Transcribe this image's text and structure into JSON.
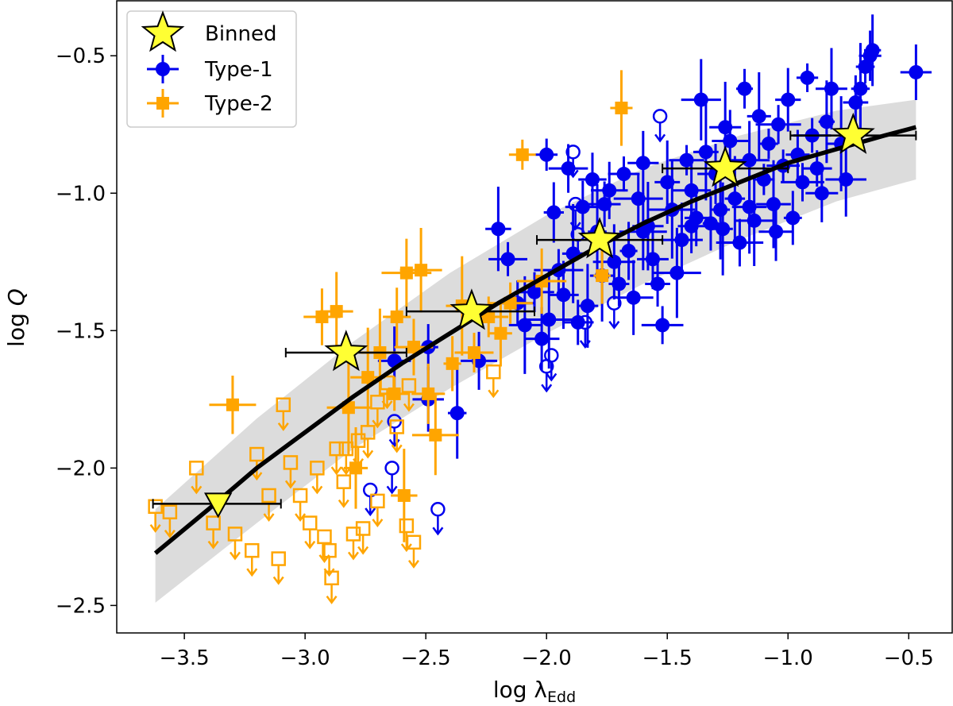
{
  "chart_data": {
    "type": "scatter",
    "xlabel_main": "log λ",
    "xlabel_sub": "Edd",
    "ylabel_main": "log ",
    "ylabel_italic": "Q",
    "xlim": [
      -3.78,
      -0.32
    ],
    "ylim": [
      -2.6,
      -0.3
    ],
    "xticks": [
      -3.5,
      -3.0,
      -2.5,
      -2.0,
      -1.5,
      -1.0,
      -0.5
    ],
    "xtick_labels": [
      "−3.5",
      "−3.0",
      "−2.5",
      "−2.0",
      "−1.5",
      "−1.0",
      "−0.5"
    ],
    "yticks": [
      -2.5,
      -2.0,
      -1.5,
      -1.0,
      -0.5
    ],
    "ytick_labels": [
      "−2.5",
      "−2.0",
      "−1.5",
      "−1.0",
      "−0.5"
    ],
    "legend": {
      "placement": "upper-left",
      "entries": [
        {
          "label": "Binned",
          "marker": "star",
          "color": "#ffff33"
        },
        {
          "label": "Type-1",
          "marker": "circle",
          "color": "#0000ee"
        },
        {
          "label": "Type-2",
          "marker": "square",
          "color": "#ffa500"
        }
      ]
    },
    "colors": {
      "type1": "#0000ee",
      "type2": "#ffa500",
      "binned": "#ffff33",
      "fit": "#000000",
      "band": "#dcdcdc"
    },
    "fit_curve": {
      "x": [
        -3.62,
        -3.4,
        -3.2,
        -3.0,
        -2.8,
        -2.6,
        -2.4,
        -2.2,
        -2.0,
        -1.8,
        -1.6,
        -1.4,
        -1.2,
        -1.0,
        -0.8,
        -0.6,
        -0.47
      ],
      "y": [
        -2.31,
        -2.15,
        -2.0,
        -1.87,
        -1.74,
        -1.62,
        -1.51,
        -1.4,
        -1.3,
        -1.2,
        -1.11,
        -1.03,
        -0.96,
        -0.89,
        -0.84,
        -0.79,
        -0.76
      ]
    },
    "band": {
      "x": [
        -3.62,
        -3.2,
        -2.8,
        -2.4,
        -2.0,
        -1.6,
        -1.2,
        -0.8,
        -0.47
      ],
      "upper": [
        -2.15,
        -1.82,
        -1.54,
        -1.29,
        -1.08,
        -0.91,
        -0.79,
        -0.7,
        -0.66
      ],
      "lower": [
        -2.49,
        -2.2,
        -1.93,
        -1.71,
        -1.51,
        -1.33,
        -1.17,
        -1.03,
        -0.95
      ]
    },
    "binned": [
      {
        "x": -3.36,
        "y": -2.13,
        "xerr": [
          0.27,
          0.26
        ],
        "marker": "triangle"
      },
      {
        "x": -2.83,
        "y": -1.58,
        "xerr": [
          0.25,
          0.25
        ],
        "marker": "star"
      },
      {
        "x": -2.31,
        "y": -1.43,
        "xerr": [
          0.27,
          0.26
        ],
        "marker": "star"
      },
      {
        "x": -1.78,
        "y": -1.17,
        "xerr": [
          0.26,
          0.26
        ],
        "marker": "star"
      },
      {
        "x": -1.26,
        "y": -0.91,
        "xerr": [
          0.26,
          0.26
        ],
        "marker": "star"
      },
      {
        "x": -0.73,
        "y": -0.79,
        "xerr": [
          0.26,
          0.26
        ],
        "marker": "star"
      }
    ],
    "series": [
      {
        "name": "Type-1",
        "detections": [
          [
            -2.63,
            -1.61
          ],
          [
            -2.49,
            -1.56
          ],
          [
            -2.49,
            -1.75
          ],
          [
            -2.37,
            -1.8
          ],
          [
            -2.28,
            -1.61
          ],
          [
            -2.2,
            -1.13
          ],
          [
            -2.16,
            -1.24
          ],
          [
            -2.12,
            -1.4
          ],
          [
            -2.05,
            -1.36
          ],
          [
            -2.02,
            -1.53
          ],
          [
            -2.0,
            -0.86
          ],
          [
            -1.99,
            -1.46
          ],
          [
            -1.97,
            -1.07
          ],
          [
            -1.95,
            -1.28
          ],
          [
            -1.93,
            -1.37
          ],
          [
            -1.91,
            -0.91
          ],
          [
            -1.89,
            -1.22
          ],
          [
            -1.87,
            -1.47
          ],
          [
            -1.85,
            -1.05
          ],
          [
            -1.83,
            -1.41
          ],
          [
            -1.81,
            -0.95
          ],
          [
            -1.79,
            -1.14
          ],
          [
            -1.77,
            -1.3
          ],
          [
            -1.76,
            -1.04
          ],
          [
            -1.74,
            -0.99
          ],
          [
            -1.72,
            -1.25
          ],
          [
            -1.7,
            -1.33
          ],
          [
            -1.68,
            -0.93
          ],
          [
            -1.66,
            -1.21
          ],
          [
            -1.64,
            -1.38
          ],
          [
            -1.62,
            -1.02
          ],
          [
            -1.6,
            -0.89
          ],
          [
            -1.58,
            -1.12
          ],
          [
            -1.56,
            -1.24
          ],
          [
            -1.54,
            -1.33
          ],
          [
            -1.52,
            -1.48
          ],
          [
            -1.5,
            -0.96
          ],
          [
            -1.48,
            -1.06
          ],
          [
            -1.46,
            -1.29
          ],
          [
            -1.44,
            -1.17
          ],
          [
            -1.42,
            -0.88
          ],
          [
            -1.4,
            -1.12
          ],
          [
            -1.38,
            -1.09
          ],
          [
            -1.36,
            -0.66
          ],
          [
            -1.34,
            -0.85
          ],
          [
            -1.32,
            -1.11
          ],
          [
            -1.3,
            -0.93
          ],
          [
            -1.28,
            -1.06
          ],
          [
            -1.26,
            -0.76
          ],
          [
            -1.24,
            -0.81
          ],
          [
            -1.22,
            -1.02
          ],
          [
            -1.2,
            -1.18
          ],
          [
            -1.18,
            -0.62
          ],
          [
            -1.16,
            -0.88
          ],
          [
            -1.14,
            -1.1
          ],
          [
            -1.12,
            -0.72
          ],
          [
            -1.1,
            -0.95
          ],
          [
            -1.08,
            -0.82
          ],
          [
            -1.06,
            -1.04
          ],
          [
            -1.04,
            -0.75
          ],
          [
            -1.02,
            -0.9
          ],
          [
            -1.0,
            -0.66
          ],
          [
            -0.98,
            -1.09
          ],
          [
            -0.96,
            -0.86
          ],
          [
            -0.94,
            -0.96
          ],
          [
            -0.92,
            -0.58
          ],
          [
            -0.9,
            -0.79
          ],
          [
            -0.88,
            -0.91
          ],
          [
            -0.86,
            -1.0
          ],
          [
            -0.84,
            -0.74
          ],
          [
            -0.82,
            -0.62
          ],
          [
            -0.78,
            -0.82
          ],
          [
            -0.76,
            -0.95
          ],
          [
            -0.72,
            -0.67
          ],
          [
            -0.7,
            -0.62
          ],
          [
            -0.68,
            -0.54
          ],
          [
            -0.66,
            -0.5
          ],
          [
            -0.65,
            -0.48
          ],
          [
            -0.47,
            -0.56
          ],
          [
            -1.16,
            -1.05
          ],
          [
            -1.05,
            -1.14
          ],
          [
            -1.27,
            -1.13
          ],
          [
            -1.4,
            -0.99
          ],
          [
            -1.6,
            -1.14
          ],
          [
            -2.09,
            -1.48
          ]
        ],
        "upper_limits": [
          [
            -2.63,
            -1.83
          ],
          [
            -2.64,
            -2.0
          ],
          [
            -2.73,
            -2.08
          ],
          [
            -2.45,
            -2.15
          ],
          [
            -1.98,
            -1.59
          ],
          [
            -1.89,
            -0.85
          ],
          [
            -1.87,
            -1.15
          ],
          [
            -1.84,
            -1.47
          ],
          [
            -1.72,
            -1.4
          ],
          [
            -1.53,
            -0.72
          ],
          [
            -1.88,
            -1.04
          ],
          [
            -2.0,
            -1.63
          ]
        ]
      },
      {
        "name": "Type-2",
        "detections": [
          [
            -3.3,
            -1.77
          ],
          [
            -2.87,
            -1.43
          ],
          [
            -2.82,
            -1.78
          ],
          [
            -2.74,
            -1.67
          ],
          [
            -2.69,
            -1.58
          ],
          [
            -2.63,
            -1.73
          ],
          [
            -2.58,
            -1.29
          ],
          [
            -2.55,
            -1.56
          ],
          [
            -2.52,
            -1.28
          ],
          [
            -2.49,
            -1.73
          ],
          [
            -2.46,
            -1.88
          ],
          [
            -2.39,
            -1.62
          ],
          [
            -2.35,
            -1.41
          ],
          [
            -2.3,
            -1.58
          ],
          [
            -2.24,
            -1.45
          ],
          [
            -2.19,
            -1.51
          ],
          [
            -2.1,
            -0.86
          ],
          [
            -2.02,
            -1.32
          ],
          [
            -1.77,
            -1.3
          ],
          [
            -1.69,
            -0.69
          ],
          [
            -2.79,
            -2.0
          ],
          [
            -2.59,
            -2.1
          ],
          [
            -2.93,
            -1.45
          ],
          [
            -2.15,
            -1.4
          ],
          [
            -2.62,
            -1.45
          ]
        ],
        "upper_limits": [
          [
            -3.62,
            -2.14
          ],
          [
            -3.56,
            -2.16
          ],
          [
            -3.45,
            -2.0
          ],
          [
            -3.38,
            -2.2
          ],
          [
            -3.29,
            -2.24
          ],
          [
            -3.22,
            -2.3
          ],
          [
            -3.2,
            -1.95
          ],
          [
            -3.15,
            -2.1
          ],
          [
            -3.11,
            -2.33
          ],
          [
            -3.09,
            -1.77
          ],
          [
            -3.06,
            -1.98
          ],
          [
            -3.02,
            -2.1
          ],
          [
            -2.98,
            -2.2
          ],
          [
            -2.95,
            -2.0
          ],
          [
            -2.92,
            -2.25
          ],
          [
            -2.9,
            -2.3
          ],
          [
            -2.89,
            -2.4
          ],
          [
            -2.87,
            -1.93
          ],
          [
            -2.84,
            -2.05
          ],
          [
            -2.8,
            -2.24
          ],
          [
            -2.78,
            -1.9
          ],
          [
            -2.74,
            -1.87
          ],
          [
            -2.7,
            -1.76
          ],
          [
            -2.66,
            -1.69
          ],
          [
            -2.62,
            -1.85
          ],
          [
            -2.57,
            -1.7
          ],
          [
            -2.55,
            -2.27
          ],
          [
            -2.22,
            -1.65
          ],
          [
            -2.83,
            -1.93
          ],
          [
            -2.76,
            -2.22
          ],
          [
            -2.7,
            -2.12
          ],
          [
            -2.58,
            -2.21
          ]
        ]
      }
    ]
  }
}
